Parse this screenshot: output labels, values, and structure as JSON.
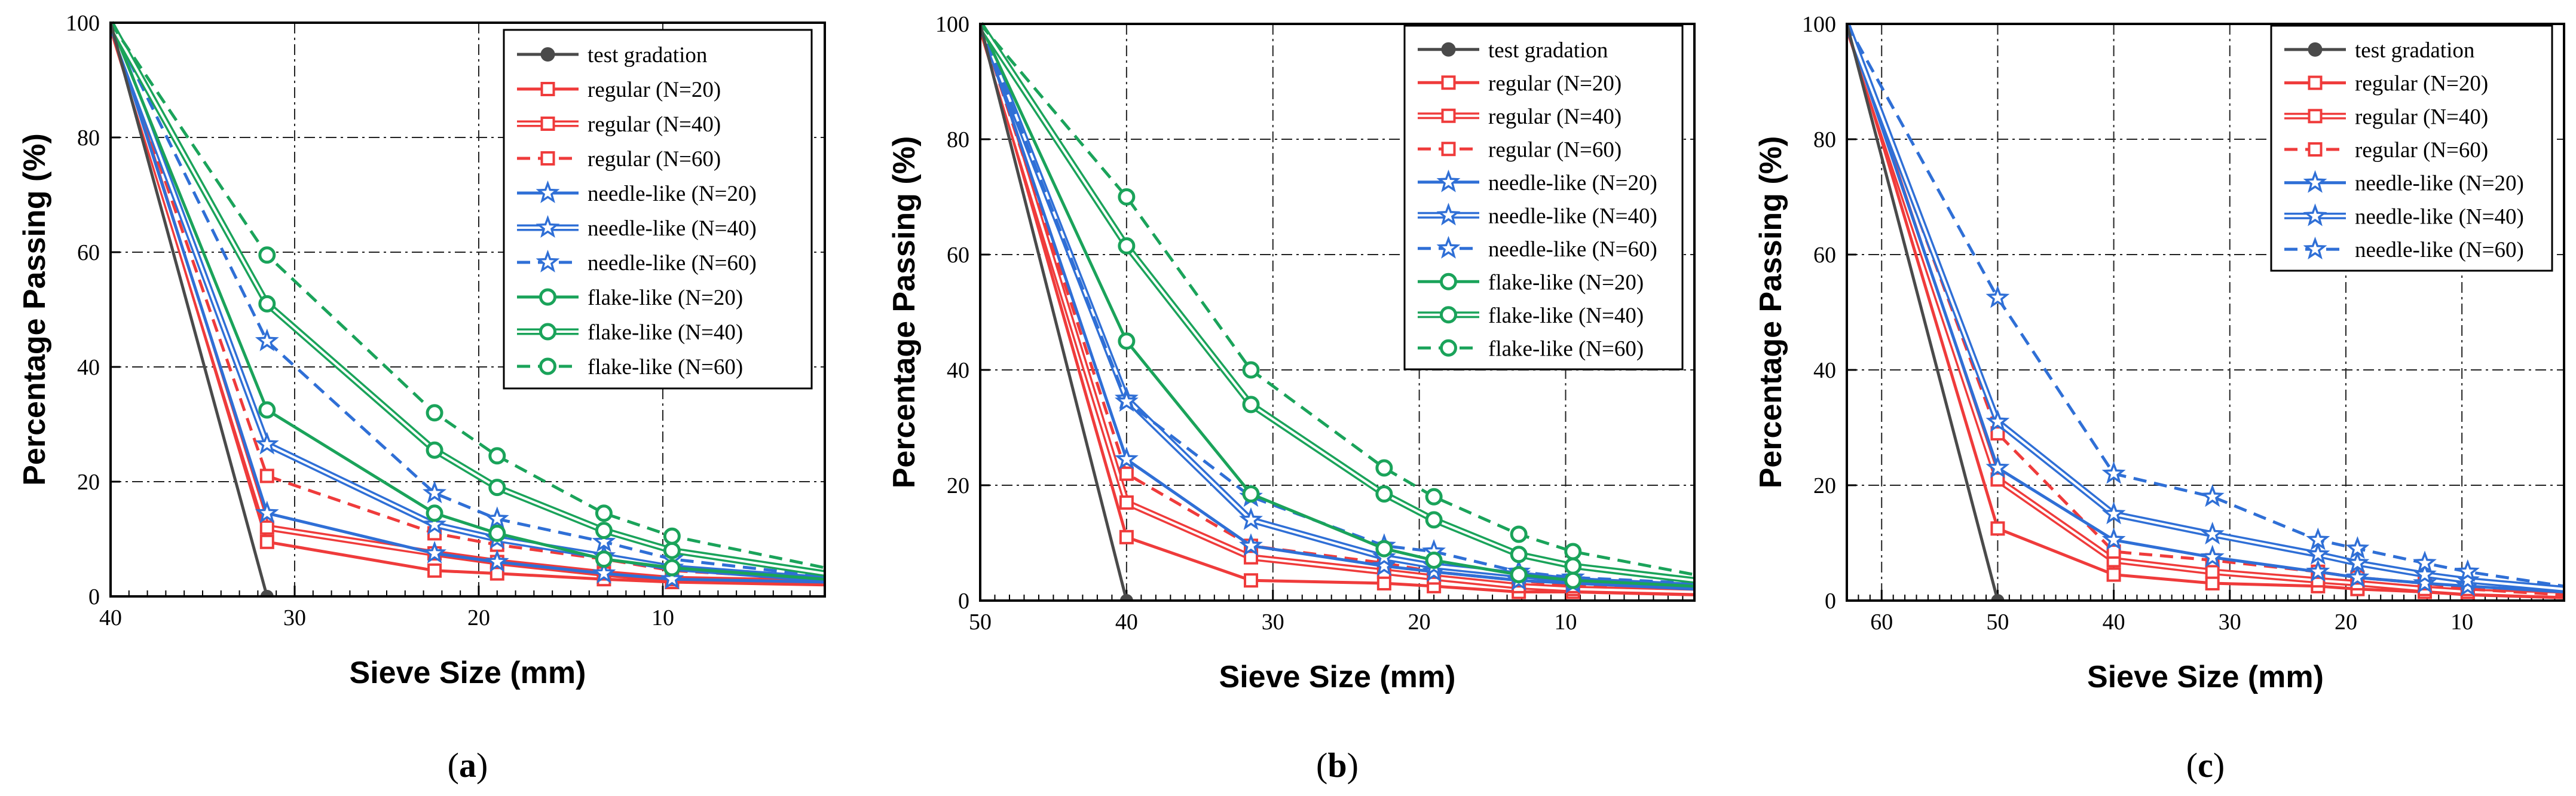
{
  "chart_data": [
    {
      "id": "a",
      "type": "line",
      "panel_label": "(a)",
      "panel_letter": "a",
      "xlabel": "Sieve Size (mm)",
      "ylabel": "Percentage Passing (%)",
      "x_reversed": true,
      "xlim": [
        40,
        1.2
      ],
      "ylim": [
        0,
        100
      ],
      "xticks": [
        40,
        30,
        20,
        10
      ],
      "yticks": [
        0,
        20,
        40,
        60,
        80,
        100
      ],
      "grid": "dash-dot",
      "legend_position": "top-right",
      "test_gradation": {
        "name": "test gradation",
        "points": [
          [
            40,
            100
          ],
          [
            31.5,
            0
          ]
        ]
      },
      "sieves": [
        40,
        31.5,
        22.4,
        19,
        13.2,
        9.5,
        1.2
      ],
      "series": [
        {
          "name": "regular (N=20)",
          "family": "regular",
          "style": "single",
          "values": [
            100,
            9.5,
            4.5,
            4,
            3,
            2.5,
            2
          ]
        },
        {
          "name": "regular (N=40)",
          "family": "regular",
          "style": "double",
          "values": [
            100,
            12,
            7.5,
            6,
            4,
            3,
            2.5
          ]
        },
        {
          "name": "regular (N=60)",
          "family": "regular",
          "style": "dashed",
          "values": [
            100,
            21,
            11,
            9,
            6.5,
            4.5,
            3
          ]
        },
        {
          "name": "needle-like (N=20)",
          "family": "needle",
          "style": "single",
          "values": [
            100,
            14.5,
            7.5,
            6,
            4,
            3,
            2.5
          ]
        },
        {
          "name": "needle-like (N=40)",
          "family": "needle",
          "style": "double",
          "values": [
            100,
            26.5,
            12.5,
            10,
            7,
            5,
            3
          ]
        },
        {
          "name": "needle-like (N=60)",
          "family": "needle",
          "style": "dashed",
          "values": [
            100,
            44.5,
            18,
            13.5,
            9.5,
            6.5,
            3.5
          ]
        },
        {
          "name": "flake-like (N=20)",
          "family": "flake",
          "style": "single",
          "values": [
            100,
            32.5,
            14.5,
            11,
            6.5,
            5,
            3
          ]
        },
        {
          "name": "flake-like (N=40)",
          "family": "flake",
          "style": "double",
          "values": [
            100,
            51,
            25.5,
            19,
            11.5,
            8,
            4
          ]
        },
        {
          "name": "flake-like (N=60)",
          "family": "flake",
          "style": "dashed",
          "values": [
            100,
            59.5,
            32,
            24.5,
            14.5,
            10.5,
            5
          ]
        }
      ]
    },
    {
      "id": "b",
      "type": "line",
      "panel_label": "(b)",
      "panel_letter": "b",
      "xlabel": "Sieve Size (mm)",
      "ylabel": "Percentage Passing (%)",
      "x_reversed": true,
      "xlim": [
        50,
        1.2
      ],
      "ylim": [
        0,
        100
      ],
      "xticks": [
        50,
        40,
        30,
        20,
        10
      ],
      "yticks": [
        0,
        20,
        40,
        60,
        80,
        100
      ],
      "grid": "dash-dot",
      "legend_position": "top-right",
      "test_gradation": {
        "name": "test gradation",
        "points": [
          [
            50,
            100
          ],
          [
            40,
            0
          ]
        ]
      },
      "sieves": [
        50,
        40,
        31.5,
        22.4,
        19,
        13.2,
        9.5,
        1.2
      ],
      "series": [
        {
          "name": "regular (N=20)",
          "family": "regular",
          "style": "single",
          "values": [
            100,
            11,
            3.5,
            3,
            2.5,
            1.5,
            1.5,
            1
          ]
        },
        {
          "name": "regular (N=40)",
          "family": "regular",
          "style": "double",
          "values": [
            100,
            17,
            7.5,
            5,
            4,
            2.5,
            2,
            1.5
          ]
        },
        {
          "name": "regular (N=60)",
          "family": "regular",
          "style": "dashed",
          "values": [
            100,
            22,
            9.5,
            6.5,
            5,
            3.5,
            2.5,
            2
          ]
        },
        {
          "name": "needle-like (N=20)",
          "family": "needle",
          "style": "single",
          "values": [
            100,
            24.5,
            9.5,
            6,
            5,
            3.5,
            3,
            2
          ]
        },
        {
          "name": "needle-like (N=40)",
          "family": "needle",
          "style": "double",
          "values": [
            100,
            35,
            14,
            7.5,
            6,
            4.5,
            3.5,
            2.5
          ]
        },
        {
          "name": "needle-like (N=60)",
          "family": "needle",
          "style": "dashed",
          "values": [
            100,
            34.5,
            18,
            9.5,
            8.5,
            5,
            4,
            3
          ]
        },
        {
          "name": "flake-like (N=20)",
          "family": "flake",
          "style": "single",
          "values": [
            100,
            45,
            18.5,
            9,
            7,
            4.5,
            3.5,
            2.5
          ]
        },
        {
          "name": "flake-like (N=40)",
          "family": "flake",
          "style": "double",
          "values": [
            100,
            61.5,
            34,
            18.5,
            14,
            8,
            6,
            3.5
          ]
        },
        {
          "name": "flake-like (N=60)",
          "family": "flake",
          "style": "dashed",
          "values": [
            100,
            70,
            40,
            23,
            18,
            11.5,
            8.5,
            4.5
          ]
        }
      ]
    },
    {
      "id": "c",
      "type": "line",
      "panel_label": "(c)",
      "panel_letter": "c",
      "xlabel": "Sieve Size (mm)",
      "ylabel": "Percentage Passing (%)",
      "x_reversed": true,
      "xlim": [
        63,
        1.2
      ],
      "ylim": [
        0,
        100
      ],
      "xticks": [
        60,
        50,
        40,
        30,
        20,
        10
      ],
      "yticks": [
        0,
        20,
        40,
        60,
        80,
        100
      ],
      "grid": "dash-dot",
      "legend_position": "top-right",
      "test_gradation": {
        "name": "test gradation",
        "points": [
          [
            63,
            100
          ],
          [
            50,
            0
          ]
        ]
      },
      "sieves": [
        63,
        50,
        40,
        31.5,
        22.4,
        19,
        13.2,
        9.5,
        1.2
      ],
      "series": [
        {
          "name": "regular (N=20)",
          "family": "regular",
          "style": "single",
          "values": [
            100,
            12.5,
            4.5,
            3,
            2.5,
            2,
            1.5,
            1,
            0.5
          ]
        },
        {
          "name": "regular (N=40)",
          "family": "regular",
          "style": "double",
          "values": [
            100,
            21,
            7,
            5,
            3.5,
            3,
            2,
            1.5,
            1
          ]
        },
        {
          "name": "regular (N=60)",
          "family": "regular",
          "style": "dashed",
          "values": [
            100,
            29,
            8.5,
            7,
            5,
            4,
            3,
            2,
            1
          ]
        },
        {
          "name": "needle-like (N=20)",
          "family": "needle",
          "style": "single",
          "values": [
            100,
            23,
            10.5,
            7.5,
            5,
            4,
            3,
            2.5,
            1.5
          ]
        },
        {
          "name": "needle-like (N=40)",
          "family": "needle",
          "style": "double",
          "values": [
            100,
            31,
            15,
            11.5,
            8,
            6.5,
            4.5,
            3.5,
            2
          ]
        },
        {
          "name": "needle-like (N=60)",
          "family": "needle",
          "style": "dashed",
          "values": [
            100,
            52.5,
            22,
            18,
            10.5,
            9,
            6.5,
            5,
            2.5
          ]
        }
      ]
    }
  ],
  "colors": {
    "test": "#4a4a4a",
    "regular": "#ef3b3b",
    "needle": "#2f6fd6",
    "flake": "#1aa35a",
    "axis": "#000000",
    "grid": "#222222"
  }
}
